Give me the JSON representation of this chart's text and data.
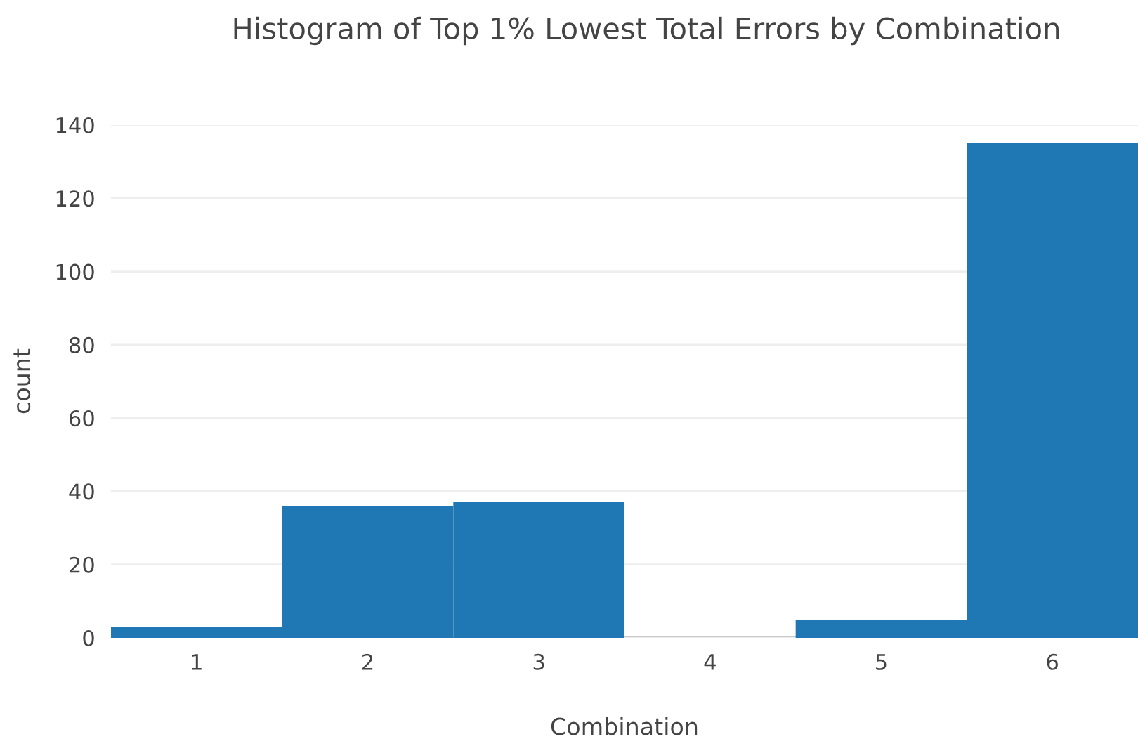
{
  "chart_data": {
    "type": "histogram",
    "title": "Histogram of Top 1% Lowest Total Errors by Combination",
    "xlabel": "Combination",
    "ylabel": "count",
    "bins": [
      0.5,
      1.5,
      2.5,
      3.5,
      4.5,
      5.5,
      6.5
    ],
    "values": [
      3,
      36,
      37,
      0,
      5,
      135
    ],
    "color": "#1f77b4",
    "xlim": [
      0.5,
      6.5
    ],
    "xticks": [
      1,
      2,
      3,
      4,
      5,
      6
    ],
    "ylim": [
      0,
      140
    ],
    "yticks": [
      0,
      20,
      40,
      60,
      80,
      100,
      120,
      140
    ],
    "grid": "y"
  }
}
